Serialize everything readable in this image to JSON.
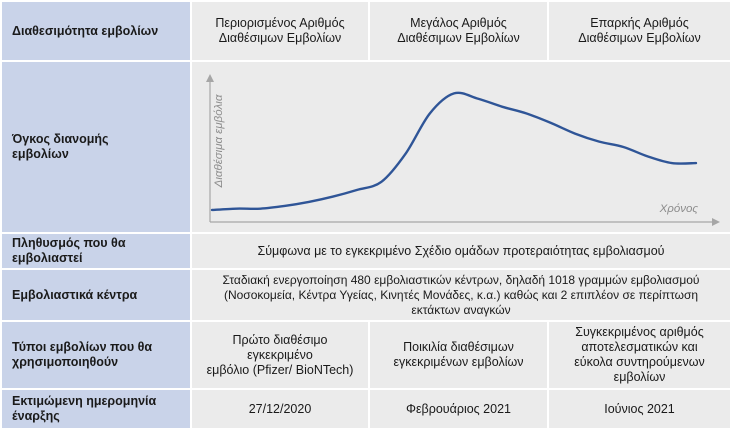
{
  "rows": {
    "availability": {
      "label": "Διαθεσιμότητα εμβολίων",
      "cols": [
        {
          "line1": "Περιορισμένος Αριθμός",
          "line2": "Διαθέσιμων Εμβολίων"
        },
        {
          "line1": "Μεγάλος Αριθμός",
          "line2": "Διαθέσιμων Εμβολίων"
        },
        {
          "line1": "Επαρκής Αριθμός",
          "line2": "Διαθέσιμων Εμβολίων"
        }
      ]
    },
    "volume": {
      "label_line1": "Όγκος διανομής",
      "label_line2": "εμβολίων"
    },
    "population": {
      "label_line1": "Πληθυσμός που θα",
      "label_line2": "εμβολιαστεί",
      "text": "Σύμφωνα με το εγκεκριμένο Σχέδιο ομάδων προτεραιότητας εμβολιασμού"
    },
    "centers": {
      "label": "Εμβολιαστικά κέντρα",
      "line1": "Σταδιακή ενεργοποίηση 480 εμβολιαστικών κέντρων, δηλαδή 1018 γραμμών εμβολιασμού",
      "line2": "(Νοσοκομεία, Κέντρα Υγείας, Κινητές Μονάδες, κ.α.) καθώς και 2 επιπλέον σε περίπτωση",
      "line3": "εκτάκτων αναγκών"
    },
    "types": {
      "label_line1": "Τύποι εμβολίων που θα",
      "label_line2": "χρησιμοποιηθούν",
      "cols": [
        {
          "line1": "Πρώτο διαθέσιμο εγκεκριμένο",
          "line2": "εμβόλιο (Pfizer/ BioNTech)"
        },
        {
          "line1": "Ποικιλία διαθέσιμων",
          "line2": "εγκεκριμένων εμβολίων"
        },
        {
          "line1": "Συγκεκριμένος αριθμός",
          "line2": "αποτελεσματικών και",
          "line3": "εύκολα συντηρούμενων",
          "line4": "εμβολίων"
        }
      ]
    },
    "start": {
      "label_line1": "Εκτιμώμενη ημερομηνία",
      "label_line2": "έναρξης",
      "cols": [
        "27/12/2020",
        "Φεβρουάριος 2021",
        "Ιούνιος 2021"
      ]
    }
  },
  "chart_data": {
    "type": "line",
    "title": "",
    "xlabel": "Χρόνος",
    "ylabel": "Διαθέσιμα εμβόλια",
    "x": [
      0,
      5,
      10,
      15,
      20,
      25,
      30,
      35,
      40,
      45,
      50,
      55,
      60,
      65,
      70,
      75,
      80,
      85,
      90,
      95,
      100
    ],
    "series": [
      {
        "values": [
          3,
          4,
          4,
          6,
          9,
          13,
          18,
          24,
          45,
          75,
          90,
          86,
          80,
          75,
          68,
          60,
          54,
          50,
          43,
          38,
          38
        ]
      }
    ],
    "xlim": [
      0,
      100
    ],
    "ylim": [
      0,
      100
    ],
    "grid": false,
    "line_color": "#2f5597",
    "axis_color": "#a6a6a6"
  },
  "colors": {
    "label_bg": "#c9d3e9",
    "cell_bg": "#ebebeb"
  }
}
